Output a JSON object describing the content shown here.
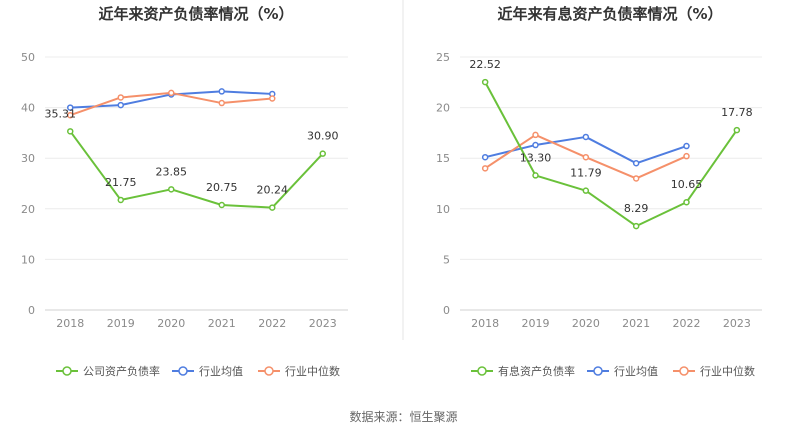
{
  "footer": {
    "source": "数据来源：恒生聚源"
  },
  "chart_data": [
    {
      "type": "line",
      "title": "近年来资产负债率情况（%）",
      "categories": [
        "2018",
        "2019",
        "2020",
        "2021",
        "2022",
        "2023"
      ],
      "ylim": [
        0,
        50
      ],
      "yticks": [
        0,
        10,
        20,
        30,
        40,
        50
      ],
      "grid": true,
      "legend_position": "bottom",
      "series": [
        {
          "name": "公司资产负债率",
          "color": "#6ac13a",
          "values": [
            35.31,
            21.75,
            23.85,
            20.75,
            20.24,
            30.9
          ],
          "labels": [
            "35.31",
            "21.75",
            "23.85",
            "20.75",
            "20.24",
            "30.90"
          ]
        },
        {
          "name": "行业均值",
          "color": "#4f7de0",
          "values": [
            40.0,
            40.5,
            42.6,
            43.2,
            42.7,
            null
          ]
        },
        {
          "name": "行业中位数",
          "color": "#f5906a",
          "values": [
            38.5,
            42.0,
            42.9,
            40.9,
            41.8,
            null
          ]
        }
      ]
    },
    {
      "type": "line",
      "title": "近年来有息资产负债率情况（%）",
      "categories": [
        "2018",
        "2019",
        "2020",
        "2021",
        "2022",
        "2023"
      ],
      "ylim": [
        0,
        25
      ],
      "yticks": [
        0,
        5,
        10,
        15,
        20,
        25
      ],
      "grid": true,
      "legend_position": "bottom",
      "series": [
        {
          "name": "有息资产负债率",
          "color": "#6ac13a",
          "values": [
            22.52,
            13.3,
            11.79,
            8.29,
            10.65,
            17.78
          ],
          "labels": [
            "22.52",
            "13.30",
            "11.79",
            "8.29",
            "10.65",
            "17.78"
          ]
        },
        {
          "name": "行业均值",
          "color": "#4f7de0",
          "values": [
            15.1,
            16.3,
            17.1,
            14.5,
            16.2,
            null
          ]
        },
        {
          "name": "行业中位数",
          "color": "#f5906a",
          "values": [
            14.0,
            17.3,
            15.1,
            13.0,
            15.2,
            null
          ]
        }
      ]
    }
  ]
}
